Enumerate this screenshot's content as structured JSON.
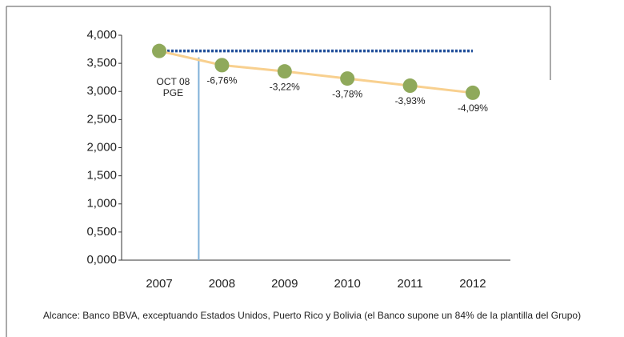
{
  "chart_data": {
    "type": "line",
    "x": [
      2007,
      2008,
      2009,
      2010,
      2011,
      2012
    ],
    "xticks": [
      2007,
      2008,
      2009,
      2010,
      2011,
      2012
    ],
    "xlim": [
      2006.4,
      2012.6
    ],
    "series": [
      {
        "color": "#f8d08f",
        "marker_color": "#8fa95b",
        "values": [
          3.72,
          3.468,
          3.357,
          3.23,
          3.103,
          2.976
        ]
      }
    ],
    "point_labels": [
      null,
      "-6,76%",
      "-3,22%",
      "-3,78%",
      "-3,93%",
      "-4,09%"
    ],
    "ylim": [
      0,
      4
    ],
    "yticks": [
      {
        "value": 0,
        "label": "0,000"
      },
      {
        "value": 0.5,
        "label": "0,500"
      },
      {
        "value": 1,
        "label": "1,000"
      },
      {
        "value": 1.5,
        "label": "1,500"
      },
      {
        "value": 2,
        "label": "2,000"
      },
      {
        "value": 2.5,
        "label": "2,500"
      },
      {
        "value": 3,
        "label": "3,000"
      },
      {
        "value": 3.5,
        "label": "3,500"
      },
      {
        "value": 4,
        "label": "4,000"
      }
    ],
    "reference_line": {
      "value": 3.72,
      "color": "#1f4e9a"
    },
    "event_line": {
      "x": 2007.63,
      "labels": [
        "OCT 08",
        "PGE"
      ],
      "color": "#7fb0d8"
    },
    "footnote": "Alcance: Banco BBVA, exceptuando Estados Unidos, Puerto Rico y Bolivia (el Banco supone un 84% de la plantilla del Grupo)"
  }
}
